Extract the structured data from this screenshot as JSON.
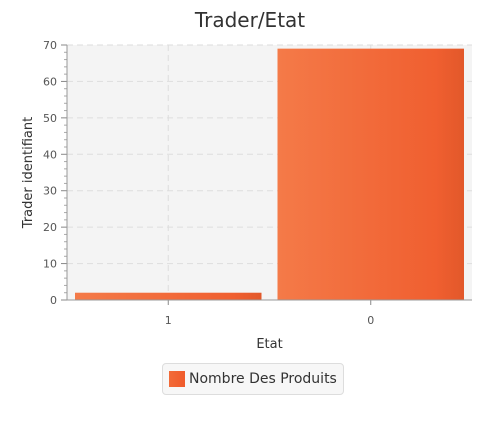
{
  "chart_data": {
    "type": "bar",
    "title": "Trader/Etat",
    "xlabel": "Etat",
    "ylabel": "Trader identifiant",
    "categories": [
      "1",
      "0"
    ],
    "series": [
      {
        "name": "Nombre Des Produits",
        "values": [
          2,
          69
        ]
      }
    ],
    "ylim": [
      0,
      70
    ],
    "yticks": [
      0,
      10,
      20,
      30,
      40,
      50,
      60,
      70
    ],
    "grid": true,
    "legend": "bottom-center",
    "colors": {
      "bar": "#f05f30",
      "bar_light": "#f47a48",
      "bar_dark": "#e2582a",
      "plot_bg": "#f4f4f4",
      "grid": "#dddddd"
    }
  }
}
